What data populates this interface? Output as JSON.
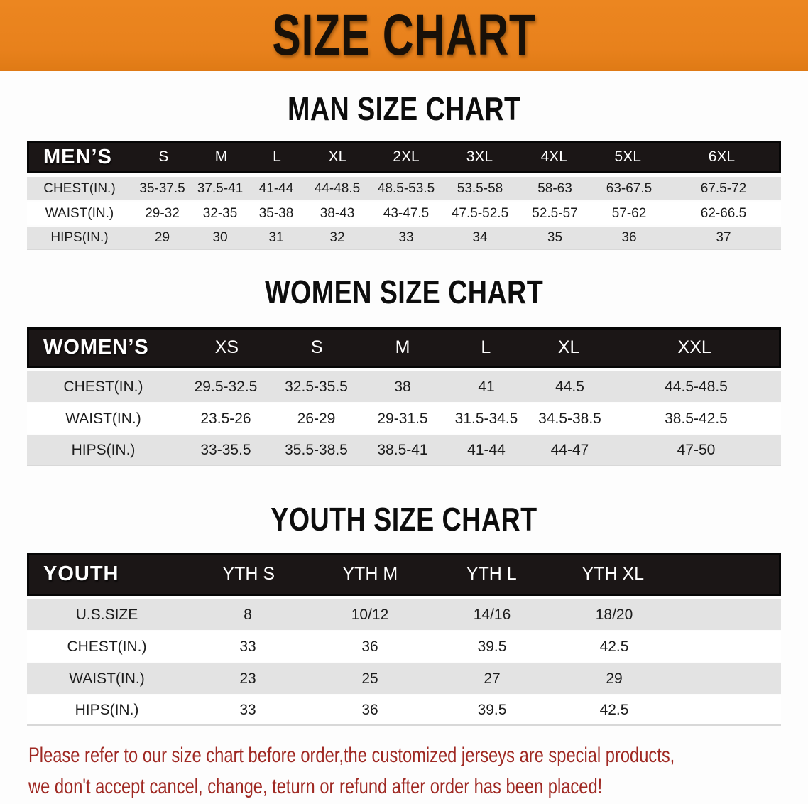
{
  "banner": {
    "title": "SIZE CHART",
    "bg_color": "#E8811C",
    "text_color": "#181008"
  },
  "sections": [
    {
      "heading": "MAN SIZE CHART",
      "table": {
        "header_label": "MEN’S",
        "columns": [
          "S",
          "M",
          "L",
          "XL",
          "2XL",
          "3XL",
          "4XL",
          "5XL",
          "6XL"
        ],
        "rows": [
          {
            "label": "CHEST(IN.)",
            "values": [
              "35-37.5",
              "37.5-41",
              "41-44",
              "44-48.5",
              "48.5-53.5",
              "53.5-58",
              "58-63",
              "63-67.5",
              "67.5-72"
            ]
          },
          {
            "label": "WAIST(IN.)",
            "values": [
              "29-32",
              "32-35",
              "35-38",
              "38-43",
              "43-47.5",
              "47.5-52.5",
              "52.5-57",
              "57-62",
              "62-66.5"
            ]
          },
          {
            "label": "HIPS(IN.)",
            "values": [
              "29",
              "30",
              "31",
              "32",
              "33",
              "34",
              "35",
              "36",
              "37"
            ]
          }
        ]
      }
    },
    {
      "heading": "WOMEN SIZE CHART",
      "table": {
        "header_label": "WOMEN’S",
        "columns": [
          "XS",
          "S",
          "M",
          "L",
          "XL",
          "XXL"
        ],
        "rows": [
          {
            "label": "CHEST(IN.)",
            "values": [
              "29.5-32.5",
              "32.5-35.5",
              "38",
              "41",
              "44.5",
              "44.5-48.5"
            ]
          },
          {
            "label": "WAIST(IN.)",
            "values": [
              "23.5-26",
              "26-29",
              "29-31.5",
              "31.5-34.5",
              "34.5-38.5",
              "38.5-42.5"
            ]
          },
          {
            "label": "HIPS(IN.)",
            "values": [
              "33-35.5",
              "35.5-38.5",
              "38.5-41",
              "41-44",
              "44-47",
              "47-50"
            ]
          }
        ]
      }
    },
    {
      "heading": "YOUTH SIZE CHART",
      "table": {
        "header_label": "YOUTH",
        "columns": [
          "YTH S",
          "YTH M",
          "YTH L",
          "YTH XL"
        ],
        "rows": [
          {
            "label": "U.S.SIZE",
            "values": [
              "8",
              "10/12",
              "14/16",
              "18/20"
            ]
          },
          {
            "label": "CHEST(IN.)",
            "values": [
              "33",
              "36",
              "39.5",
              "42.5"
            ]
          },
          {
            "label": "WAIST(IN.)",
            "values": [
              "23",
              "25",
              "27",
              "29"
            ]
          },
          {
            "label": "HIPS(IN.)",
            "values": [
              "33",
              "36",
              "39.5",
              "42.5"
            ]
          }
        ]
      }
    }
  ],
  "footnote": {
    "color": "#9F2923",
    "lines": [
      "Please refer to our size chart before order,the customized jerseys are special products,",
      "we don't accept cancel, change, teturn or refund after order has been placed!"
    ]
  },
  "colors": {
    "header_bar": "#1B1616",
    "row_gray": "#E3E3E3",
    "row_white": "#FFFFFF"
  }
}
